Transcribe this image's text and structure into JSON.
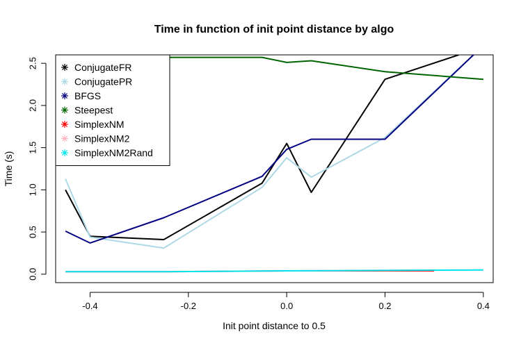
{
  "chart_data": {
    "type": "line",
    "title": "Time in function of init point distance by algo",
    "xlabel": "Init point distance to  0.5",
    "ylabel": "Time (s)",
    "xlim": [
      -0.47,
      0.42
    ],
    "ylim": [
      -0.1,
      2.6
    ],
    "x_ticks": [
      -0.4,
      -0.2,
      0.0,
      0.2,
      0.4
    ],
    "x_tick_labels": [
      "-0.4",
      "-0.2",
      "0.0",
      "0.2",
      "0.4"
    ],
    "y_ticks": [
      0.0,
      0.5,
      1.0,
      1.5,
      2.0,
      2.5
    ],
    "y_tick_labels": [
      "0.0",
      "0.5",
      "1.0",
      "1.5",
      "2.0",
      "2.5"
    ],
    "grid": false,
    "legend_position": "top-left",
    "series": [
      {
        "name": "ConjugateFR",
        "color": "#000000",
        "x": [
          -0.45,
          -0.4,
          -0.25,
          -0.05,
          0.0,
          0.05,
          0.2,
          0.35
        ],
        "y": [
          1.0,
          0.45,
          0.41,
          1.08,
          1.55,
          0.97,
          2.31,
          2.6
        ]
      },
      {
        "name": "ConjugatePR",
        "color": "#add8e6",
        "x": [
          -0.45,
          -0.4,
          -0.25,
          -0.05,
          0.0,
          0.05,
          0.2,
          0.38
        ],
        "y": [
          1.13,
          0.44,
          0.31,
          1.03,
          1.38,
          1.15,
          1.62,
          2.6
        ]
      },
      {
        "name": "BFGS",
        "color": "#000080",
        "x": [
          -0.45,
          -0.4,
          -0.25,
          -0.05,
          0.0,
          0.05,
          0.2,
          0.38
        ],
        "y": [
          0.51,
          0.37,
          0.67,
          1.16,
          1.48,
          1.6,
          1.6,
          2.6
        ]
      },
      {
        "name": "Steepest",
        "color": "#006400",
        "x": [
          -0.25,
          -0.05,
          0.0,
          0.05,
          0.2,
          0.4
        ],
        "y": [
          2.57,
          2.57,
          2.51,
          2.53,
          2.4,
          2.31
        ]
      },
      {
        "name": "SimplexNM",
        "color": "#ff0000",
        "x": [
          -0.45,
          -0.25,
          0.0,
          0.3
        ],
        "y": [
          0.03,
          0.03,
          0.04,
          0.04
        ]
      },
      {
        "name": "SimplexNM2",
        "color": "#ffb6c1",
        "x": [
          -0.45,
          -0.25,
          0.0,
          0.3
        ],
        "y": [
          0.03,
          0.03,
          0.04,
          0.05
        ]
      },
      {
        "name": "SimplexNM2Rand",
        "color": "#00e5ee",
        "x": [
          -0.45,
          -0.25,
          0.0,
          0.4
        ],
        "y": [
          0.03,
          0.03,
          0.04,
          0.05
        ]
      }
    ]
  }
}
